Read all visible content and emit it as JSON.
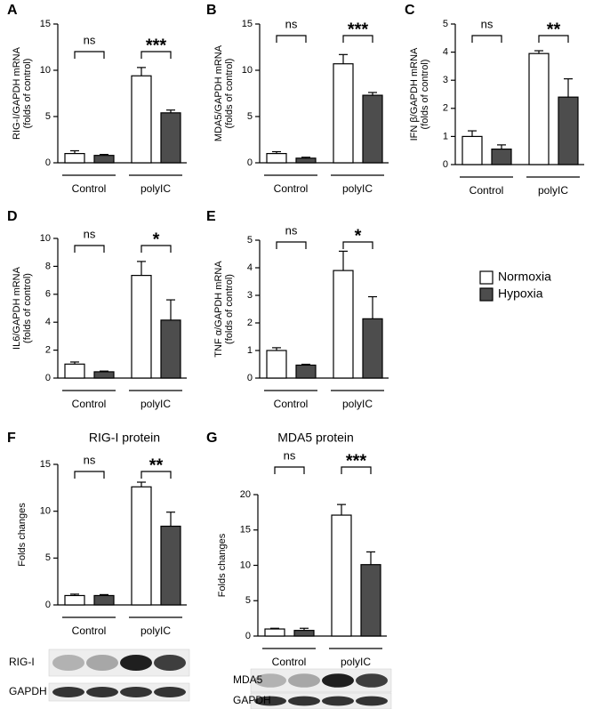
{
  "legend": [
    {
      "name": "Normoxia",
      "color": "#ffffff"
    },
    {
      "name": "Hypoxia",
      "color": "#4d4d4d"
    }
  ],
  "chart_data": [
    {
      "type": "bar",
      "panel": "A",
      "ylabel": [
        "RIG-I/GAPDH mRNA",
        "(folds of control)"
      ],
      "groups": [
        "Control",
        "polyIC"
      ],
      "series": [
        {
          "values": [
            1.0,
            9.4
          ],
          "errors": [
            0.3,
            0.9
          ]
        },
        {
          "values": [
            0.8,
            5.4
          ],
          "errors": [
            0.1,
            0.3
          ]
        }
      ],
      "significance": [
        "ns",
        "***"
      ],
      "ylim": [
        0,
        15
      ],
      "yticks": [
        0,
        5,
        10,
        15
      ]
    },
    {
      "type": "bar",
      "panel": "B",
      "ylabel": [
        "MDA5/GAPDH mRNA",
        "(folds of control)"
      ],
      "groups": [
        "Control",
        "polyIC"
      ],
      "series": [
        {
          "values": [
            1.0,
            10.7
          ],
          "errors": [
            0.2,
            1.0
          ]
        },
        {
          "values": [
            0.5,
            7.3
          ],
          "errors": [
            0.1,
            0.3
          ]
        }
      ],
      "significance": [
        "ns",
        "***"
      ],
      "ylim": [
        0,
        15
      ],
      "yticks": [
        0,
        5,
        10,
        15
      ]
    },
    {
      "type": "bar",
      "panel": "C",
      "ylabel": [
        "IFN β/GAPDH mRNA",
        "(folds of control)"
      ],
      "groups": [
        "Control",
        "polyIC"
      ],
      "series": [
        {
          "values": [
            1.0,
            3.95
          ],
          "errors": [
            0.2,
            0.1
          ]
        },
        {
          "values": [
            0.55,
            2.4
          ],
          "errors": [
            0.15,
            0.65
          ]
        }
      ],
      "significance": [
        "ns",
        "**"
      ],
      "ylim": [
        0,
        5
      ],
      "yticks": [
        0,
        1,
        2,
        3,
        4,
        5
      ]
    },
    {
      "type": "bar",
      "panel": "D",
      "ylabel": [
        "IL6/GAPDH mRNA",
        "(folds of control)"
      ],
      "groups": [
        "Control",
        "polyIC"
      ],
      "series": [
        {
          "values": [
            1.0,
            7.35
          ],
          "errors": [
            0.15,
            1.0
          ]
        },
        {
          "values": [
            0.45,
            4.15
          ],
          "errors": [
            0.05,
            1.45
          ]
        }
      ],
      "significance": [
        "ns",
        "*"
      ],
      "ylim": [
        0,
        10
      ],
      "yticks": [
        0,
        2,
        4,
        6,
        8,
        10
      ]
    },
    {
      "type": "bar",
      "panel": "E",
      "ylabel": [
        "TNF α/GAPDH mRNA",
        "(folds of control)"
      ],
      "groups": [
        "Control",
        "polyIC"
      ],
      "series": [
        {
          "values": [
            1.0,
            3.9
          ],
          "errors": [
            0.1,
            0.7
          ]
        },
        {
          "values": [
            0.47,
            2.15
          ],
          "errors": [
            0.03,
            0.8
          ]
        }
      ],
      "significance": [
        "ns",
        "*"
      ],
      "ylim": [
        0,
        5
      ],
      "yticks": [
        0,
        1,
        2,
        3,
        4,
        5
      ]
    },
    {
      "type": "bar",
      "panel": "F",
      "title": "RIG-I protein",
      "ylabel": [
        "Folds changes"
      ],
      "groups": [
        "Control",
        "polyIC"
      ],
      "series": [
        {
          "values": [
            1.0,
            12.6
          ],
          "errors": [
            0.15,
            0.5
          ]
        },
        {
          "values": [
            1.0,
            8.4
          ],
          "errors": [
            0.1,
            1.5
          ]
        }
      ],
      "significance": [
        "ns",
        "**"
      ],
      "ylim": [
        0,
        15
      ],
      "yticks": [
        0,
        5,
        10,
        15
      ],
      "blot_labels": [
        "RIG-I",
        "GAPDH"
      ]
    },
    {
      "type": "bar",
      "panel": "G",
      "title": "MDA5 protein",
      "ylabel": [
        "Folds changes"
      ],
      "groups": [
        "Control",
        "polyIC"
      ],
      "series": [
        {
          "values": [
            1.0,
            17.1
          ],
          "errors": [
            0.1,
            1.5
          ]
        },
        {
          "values": [
            0.8,
            10.1
          ],
          "errors": [
            0.3,
            1.8
          ]
        }
      ],
      "significance": [
        "ns",
        "***"
      ],
      "ylim": [
        0,
        20
      ],
      "yticks": [
        0,
        5,
        10,
        15,
        20
      ],
      "blot_labels": [
        "MDA5",
        "GAPDH"
      ]
    }
  ]
}
